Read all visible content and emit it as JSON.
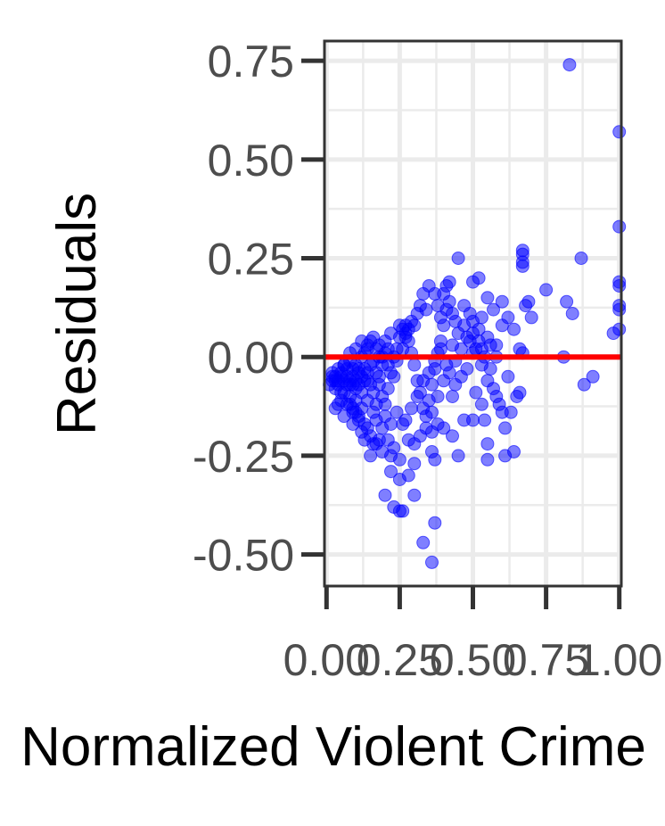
{
  "chart_data": {
    "type": "scatter",
    "title": "",
    "xlabel": "Normalized Violent Crime",
    "ylabel": "Residuals",
    "xlim": [
      -0.007,
      1.007
    ],
    "ylim": [
      -0.58,
      0.8
    ],
    "x_ticks": [
      0.0,
      0.25,
      0.5,
      0.75,
      1.0
    ],
    "x_tick_labels": [
      "0.00",
      "0.25",
      "0.50",
      "0.75",
      "1.00"
    ],
    "y_ticks": [
      -0.5,
      -0.25,
      0.0,
      0.25,
      0.5,
      0.75
    ],
    "y_tick_labels": [
      "-0.50",
      "-0.25",
      "0.00",
      "0.25",
      "0.50",
      "0.75"
    ],
    "grid": true,
    "reference_line": {
      "y": 0.0,
      "color": "#ff0000"
    },
    "point_color": "#0000ff",
    "points": [
      [
        0.83,
        0.74
      ],
      [
        1.0,
        0.57
      ],
      [
        1.0,
        0.33
      ],
      [
        0.87,
        0.25
      ],
      [
        1.0,
        0.19
      ],
      [
        1.0,
        0.18
      ],
      [
        1.0,
        0.13
      ],
      [
        1.0,
        0.12
      ],
      [
        1.0,
        0.07
      ],
      [
        0.98,
        0.06
      ],
      [
        0.88,
        -0.07
      ],
      [
        0.91,
        -0.05
      ],
      [
        0.81,
        0.0
      ],
      [
        0.75,
        0.17
      ],
      [
        0.67,
        0.27
      ],
      [
        0.67,
        0.26
      ],
      [
        0.67,
        0.24
      ],
      [
        0.67,
        0.23
      ],
      [
        0.84,
        0.11
      ],
      [
        0.82,
        0.14
      ],
      [
        0.69,
        0.14
      ],
      [
        0.68,
        0.13
      ],
      [
        0.7,
        0.1
      ],
      [
        0.66,
        0.02
      ],
      [
        0.67,
        0.01
      ],
      [
        0.66,
        -0.09
      ],
      [
        0.64,
        -0.24
      ],
      [
        0.61,
        -0.25
      ],
      [
        0.58,
        -0.1
      ],
      [
        0.6,
        -0.14
      ],
      [
        0.62,
        0.1
      ],
      [
        0.6,
        0.14
      ],
      [
        0.64,
        0.07
      ],
      [
        0.55,
        0.15
      ],
      [
        0.52,
        0.2
      ],
      [
        0.5,
        0.19
      ],
      [
        0.45,
        0.25
      ],
      [
        0.42,
        0.19
      ],
      [
        0.41,
        0.18
      ],
      [
        0.4,
        0.16
      ],
      [
        0.38,
        0.13
      ],
      [
        0.39,
        0.1
      ],
      [
        0.43,
        0.11
      ],
      [
        0.47,
        0.13
      ],
      [
        0.5,
        0.09
      ],
      [
        0.52,
        0.07
      ],
      [
        0.55,
        0.05
      ],
      [
        0.53,
        0.02
      ],
      [
        0.5,
        0.01
      ],
      [
        0.48,
        -0.03
      ],
      [
        0.46,
        -0.05
      ],
      [
        0.44,
        -0.07
      ],
      [
        0.43,
        -0.1
      ],
      [
        0.47,
        -0.16
      ],
      [
        0.5,
        -0.16
      ],
      [
        0.54,
        -0.16
      ],
      [
        0.53,
        -0.12
      ],
      [
        0.55,
        -0.22
      ],
      [
        0.55,
        -0.26
      ],
      [
        0.51,
        -0.09
      ],
      [
        0.45,
        -0.25
      ],
      [
        0.43,
        -0.2
      ],
      [
        0.4,
        -0.18
      ],
      [
        0.38,
        -0.17
      ],
      [
        0.36,
        -0.24
      ],
      [
        0.37,
        -0.26
      ],
      [
        0.36,
        -0.19
      ],
      [
        0.37,
        -0.42
      ],
      [
        0.36,
        -0.52
      ],
      [
        0.33,
        -0.47
      ],
      [
        0.3,
        -0.35
      ],
      [
        0.3,
        -0.27
      ],
      [
        0.28,
        -0.3
      ],
      [
        0.25,
        -0.31
      ],
      [
        0.22,
        -0.29
      ],
      [
        0.23,
        -0.38
      ],
      [
        0.25,
        -0.39
      ],
      [
        0.26,
        -0.39
      ],
      [
        0.2,
        -0.35
      ],
      [
        0.22,
        -0.25
      ],
      [
        0.19,
        -0.24
      ],
      [
        0.18,
        -0.21
      ],
      [
        0.16,
        -0.22
      ],
      [
        0.14,
        -0.18
      ],
      [
        0.13,
        -0.17
      ],
      [
        0.11,
        -0.15
      ],
      [
        0.09,
        -0.14
      ],
      [
        0.08,
        -0.12
      ],
      [
        0.06,
        -0.09
      ],
      [
        0.04,
        -0.07
      ],
      [
        0.02,
        -0.06
      ],
      [
        0.03,
        -0.05
      ],
      [
        0.05,
        -0.04
      ],
      [
        0.07,
        -0.03
      ],
      [
        0.06,
        -0.02
      ],
      [
        0.08,
        -0.01
      ],
      [
        0.09,
        -0.05
      ],
      [
        0.1,
        -0.08
      ],
      [
        0.11,
        -0.03
      ],
      [
        0.12,
        0.0
      ],
      [
        0.13,
        0.01
      ],
      [
        0.14,
        0.03
      ],
      [
        0.15,
        0.04
      ],
      [
        0.16,
        -0.01
      ],
      [
        0.17,
        -0.04
      ],
      [
        0.18,
        -0.07
      ],
      [
        0.19,
        -0.1
      ],
      [
        0.2,
        -0.12
      ],
      [
        0.21,
        -0.08
      ],
      [
        0.22,
        -0.04
      ],
      [
        0.23,
        0.0
      ],
      [
        0.24,
        0.02
      ],
      [
        0.25,
        0.05
      ],
      [
        0.26,
        0.07
      ],
      [
        0.27,
        0.08
      ],
      [
        0.28,
        0.04
      ],
      [
        0.29,
        0.01
      ],
      [
        0.3,
        -0.02
      ],
      [
        0.31,
        -0.06
      ],
      [
        0.32,
        -0.09
      ],
      [
        0.33,
        -0.13
      ],
      [
        0.34,
        -0.15
      ],
      [
        0.35,
        -0.11
      ],
      [
        0.36,
        -0.07
      ],
      [
        0.37,
        -0.03
      ],
      [
        0.38,
        0.01
      ],
      [
        0.39,
        0.04
      ],
      [
        0.4,
        0.08
      ],
      [
        0.41,
        0.12
      ],
      [
        0.35,
        0.18
      ],
      [
        0.33,
        0.16
      ],
      [
        0.32,
        0.13
      ],
      [
        0.31,
        0.11
      ],
      [
        0.29,
        0.09
      ],
      [
        0.28,
        0.07
      ],
      [
        0.27,
        0.05
      ],
      [
        0.26,
        0.02
      ],
      [
        0.24,
        -0.01
      ],
      [
        0.23,
        -0.05
      ],
      [
        0.21,
        -0.02
      ],
      [
        0.19,
        0.0
      ],
      [
        0.17,
        0.02
      ],
      [
        0.15,
        -0.02
      ],
      [
        0.14,
        -0.06
      ],
      [
        0.12,
        -0.09
      ],
      [
        0.1,
        -0.11
      ],
      [
        0.08,
        -0.1
      ],
      [
        0.07,
        -0.07
      ],
      [
        0.05,
        -0.09
      ],
      [
        0.04,
        -0.12
      ],
      [
        0.03,
        -0.13
      ],
      [
        0.06,
        -0.15
      ],
      [
        0.09,
        -0.17
      ],
      [
        0.12,
        -0.19
      ],
      [
        0.15,
        -0.2
      ],
      [
        0.17,
        -0.16
      ],
      [
        0.2,
        -0.15
      ],
      [
        0.22,
        -0.17
      ],
      [
        0.24,
        -0.14
      ],
      [
        0.26,
        -0.17
      ],
      [
        0.28,
        -0.21
      ],
      [
        0.3,
        -0.22
      ],
      [
        0.32,
        -0.2
      ],
      [
        0.34,
        -0.18
      ],
      [
        0.36,
        -0.14
      ],
      [
        0.38,
        -0.1
      ],
      [
        0.4,
        -0.06
      ],
      [
        0.42,
        -0.04
      ],
      [
        0.44,
        -0.01
      ],
      [
        0.46,
        0.02
      ],
      [
        0.48,
        0.05
      ],
      [
        0.5,
        0.06
      ],
      [
        0.52,
        0.04
      ],
      [
        0.54,
        0.0
      ],
      [
        0.56,
        -0.03
      ],
      [
        0.58,
        0.03
      ],
      [
        0.6,
        0.08
      ],
      [
        0.57,
        0.12
      ],
      [
        0.53,
        0.1
      ],
      [
        0.49,
        0.11
      ],
      [
        0.44,
        0.09
      ],
      [
        0.42,
        0.14
      ],
      [
        0.37,
        0.16
      ],
      [
        0.34,
        0.12
      ],
      [
        0.3,
        0.08
      ],
      [
        0.27,
        0.06
      ],
      [
        0.25,
        0.08
      ],
      [
        0.22,
        0.06
      ],
      [
        0.2,
        0.04
      ],
      [
        0.18,
        0.03
      ],
      [
        0.16,
        0.05
      ],
      [
        0.14,
        0.02
      ],
      [
        0.12,
        0.04
      ],
      [
        0.1,
        0.02
      ],
      [
        0.08,
        0.01
      ],
      [
        0.06,
        -0.02
      ],
      [
        0.04,
        -0.03
      ],
      [
        0.02,
        -0.04
      ],
      [
        0.01,
        -0.07
      ],
      [
        0.03,
        -0.08
      ],
      [
        0.05,
        -0.11
      ],
      [
        0.07,
        -0.12
      ],
      [
        0.09,
        -0.13
      ],
      [
        0.11,
        -0.16
      ],
      [
        0.13,
        -0.21
      ],
      [
        0.15,
        -0.25
      ],
      [
        0.17,
        -0.22
      ],
      [
        0.19,
        -0.18
      ],
      [
        0.21,
        -0.21
      ],
      [
        0.23,
        -0.23
      ],
      [
        0.25,
        -0.26
      ],
      [
        0.27,
        -0.16
      ],
      [
        0.29,
        -0.13
      ],
      [
        0.31,
        -0.1
      ],
      [
        0.33,
        -0.06
      ],
      [
        0.35,
        -0.04
      ],
      [
        0.37,
        -0.01
      ],
      [
        0.39,
        0.02
      ],
      [
        0.41,
        -0.02
      ],
      [
        0.43,
        0.03
      ],
      [
        0.45,
        0.06
      ],
      [
        0.47,
        0.08
      ],
      [
        0.49,
        0.04
      ],
      [
        0.51,
        0.02
      ],
      [
        0.53,
        -0.02
      ],
      [
        0.55,
        -0.06
      ],
      [
        0.57,
        -0.08
      ],
      [
        0.59,
        -0.12
      ],
      [
        0.61,
        -0.18
      ],
      [
        0.63,
        -0.14
      ],
      [
        0.65,
        -0.1
      ],
      [
        0.62,
        -0.05
      ],
      [
        0.58,
        0.0
      ],
      [
        0.56,
        0.03
      ],
      [
        0.13,
        -0.06
      ],
      [
        0.11,
        -0.04
      ],
      [
        0.1,
        -0.02
      ],
      [
        0.09,
        -0.03
      ],
      [
        0.08,
        -0.06
      ],
      [
        0.07,
        -0.05
      ],
      [
        0.06,
        -0.06
      ],
      [
        0.05,
        -0.05
      ],
      [
        0.04,
        -0.06
      ],
      [
        0.03,
        -0.06
      ],
      [
        0.02,
        -0.05
      ],
      [
        0.11,
        -0.07
      ],
      [
        0.12,
        -0.05
      ],
      [
        0.1,
        -0.06
      ],
      [
        0.09,
        -0.07
      ],
      [
        0.13,
        -0.03
      ],
      [
        0.14,
        -0.04
      ],
      [
        0.15,
        -0.07
      ],
      [
        0.16,
        -0.09
      ],
      [
        0.18,
        -0.05
      ],
      [
        0.19,
        -0.02
      ],
      [
        0.2,
        0.01
      ],
      [
        0.21,
        0.02
      ],
      [
        0.18,
        0.0
      ],
      [
        0.17,
        -0.12
      ],
      [
        0.16,
        -0.14
      ],
      [
        0.14,
        -0.11
      ],
      [
        0.12,
        -0.13
      ],
      [
        0.1,
        -0.14
      ],
      [
        0.08,
        -0.07
      ]
    ]
  }
}
